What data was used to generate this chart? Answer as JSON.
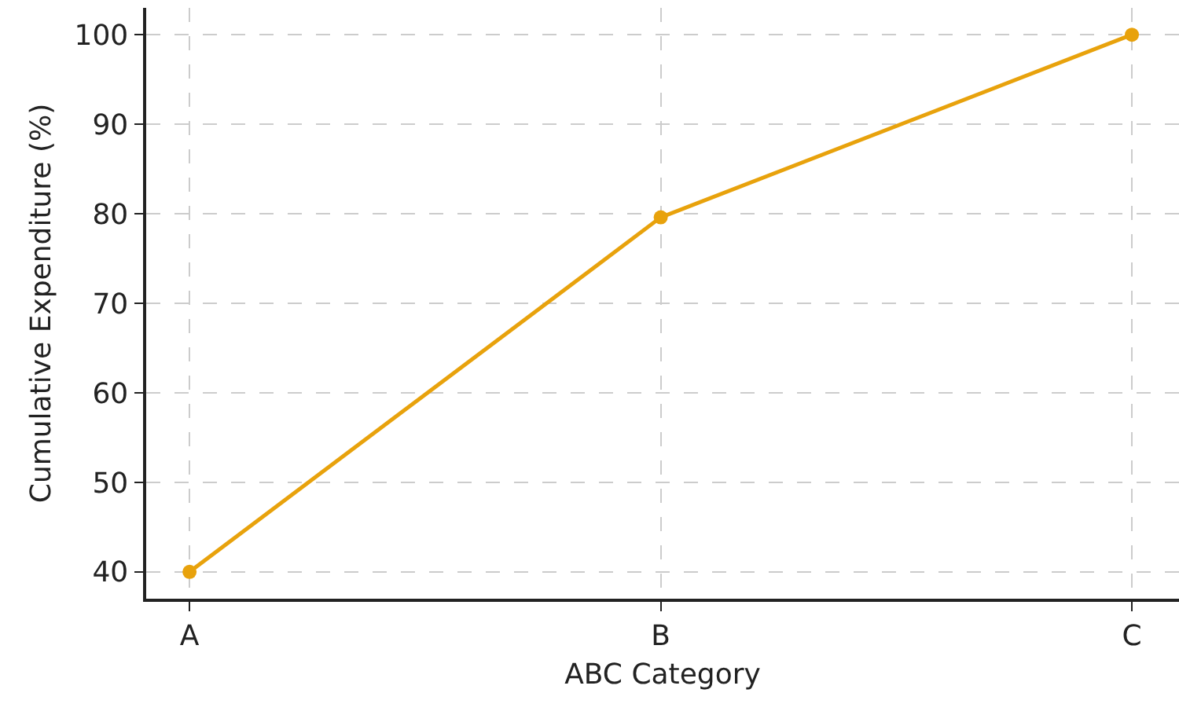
{
  "chart_data": {
    "type": "line",
    "xlabel": "ABC Category",
    "ylabel": "Cumulative Expenditure (%)",
    "categories": [
      "A",
      "B",
      "C"
    ],
    "series": [
      {
        "color": "#e8a20c",
        "values": [
          40,
          79.6,
          100
        ]
      }
    ],
    "ylim": [
      37,
      103
    ],
    "yticks": [
      40,
      50,
      60,
      70,
      80,
      90,
      100
    ],
    "grid": true,
    "marker": "circle",
    "line_style": "solid",
    "legend": false
  }
}
